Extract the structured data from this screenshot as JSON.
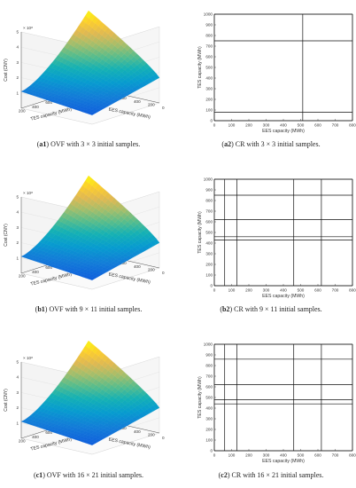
{
  "chart_data": [
    {
      "id": "a1",
      "type": "surface",
      "caption_label": "a1",
      "caption_text": " OVF with 3 × 3 initial samples.",
      "zlabel": "Cost (CNY)",
      "z_exponent": "× 10⁸",
      "xlabel": "TES capacity (MWh)",
      "ylabel": "EES capacity (MWh)",
      "xticks": [
        "200",
        "400",
        "600",
        "800",
        "1000"
      ],
      "yticks": [
        "1000",
        "800",
        "600",
        "400",
        "200",
        "0"
      ],
      "zticks": [
        "1",
        "2",
        "3",
        "4",
        "5"
      ]
    },
    {
      "id": "a2",
      "type": "grid",
      "caption_label": "a2",
      "caption_text": " CR with 3 × 3 initial samples.",
      "xlabel": "EES capacity (MWh)",
      "ylabel": "TES capacity (MWh)",
      "xlim": [
        0,
        800
      ],
      "ylim": [
        0,
        1000
      ],
      "xticks": [
        "0",
        "100",
        "200",
        "300",
        "400",
        "500",
        "600",
        "700",
        "800"
      ],
      "yticks": [
        "0",
        "100",
        "200",
        "300",
        "400",
        "500",
        "600",
        "700",
        "800",
        "900",
        "1000"
      ],
      "vlines": [
        0,
        512,
        800
      ],
      "hlines": [
        0,
        80,
        750,
        1000
      ]
    },
    {
      "id": "b1",
      "type": "surface",
      "caption_label": "b1",
      "caption_text": " OVF with 9 × 11 initial samples.",
      "zlabel": "Cost (CNY)",
      "z_exponent": "× 10⁸",
      "xlabel": "TES capacity (MWh)",
      "ylabel": "EES capacity (MWh)",
      "xticks": [
        "200",
        "400",
        "600",
        "800",
        "1000"
      ],
      "yticks": [
        "1000",
        "800",
        "600",
        "400",
        "200",
        "0"
      ],
      "zticks": [
        "1",
        "2",
        "3",
        "4",
        "5"
      ]
    },
    {
      "id": "b2",
      "type": "grid",
      "caption_label": "b2",
      "caption_text": " CR with 9 × 11 initial samples.",
      "xlabel": "EES capacity (MWh)",
      "ylabel": "TES capacity (MWh)",
      "xlim": [
        0,
        800
      ],
      "ylim": [
        0,
        1000
      ],
      "xticks": [
        "0",
        "100",
        "200",
        "300",
        "400",
        "500",
        "600",
        "700",
        "800"
      ],
      "yticks": [
        "0",
        "100",
        "200",
        "300",
        "400",
        "500",
        "600",
        "700",
        "800",
        "900",
        "1000"
      ],
      "vlines": [
        0,
        60,
        130,
        460,
        620,
        800
      ],
      "hlines": [
        0,
        430,
        460,
        620,
        850,
        1000
      ]
    },
    {
      "id": "c1",
      "type": "surface",
      "caption_label": "c1",
      "caption_text": " OVF with 16 × 21 initial samples.",
      "zlabel": "Cost (CNY)",
      "z_exponent": "× 10⁸",
      "xlabel": "TES capacity (MWh)",
      "ylabel": "EES capacity (MWh)",
      "xticks": [
        "200",
        "400",
        "600",
        "800",
        "1000"
      ],
      "yticks": [
        "1000",
        "800",
        "600",
        "400",
        "200",
        "0"
      ],
      "zticks": [
        "1",
        "2",
        "3",
        "4",
        "5"
      ]
    },
    {
      "id": "c2",
      "type": "grid",
      "caption_label": "c2",
      "caption_text": " CR with 16 × 21 initial samples.",
      "xlabel": "EES capacity (MWh)",
      "ylabel": "TES capacity (MWh)",
      "xlim": [
        0,
        800
      ],
      "ylim": [
        0,
        1000
      ],
      "xticks": [
        "0",
        "100",
        "200",
        "300",
        "400",
        "500",
        "600",
        "700",
        "800"
      ],
      "yticks": [
        "0",
        "100",
        "200",
        "300",
        "400",
        "500",
        "600",
        "700",
        "800",
        "900",
        "1000"
      ],
      "vlines": [
        0,
        60,
        130,
        460,
        620,
        800
      ],
      "hlines": [
        0,
        440,
        480,
        620,
        860,
        1000
      ]
    }
  ]
}
